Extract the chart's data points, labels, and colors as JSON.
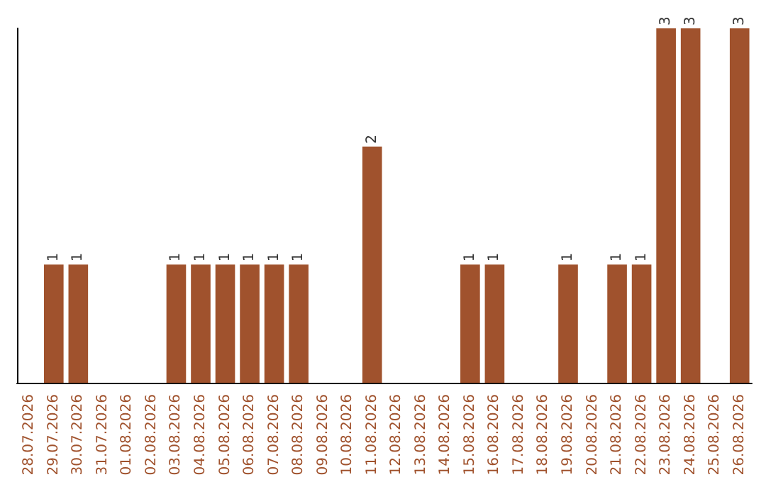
{
  "chart_data": {
    "type": "bar",
    "categories": [
      "28.07.2026",
      "29.07.2026",
      "30.07.2026",
      "31.07.2026",
      "01.08.2026",
      "02.08.2026",
      "03.08.2026",
      "04.08.2026",
      "05.08.2026",
      "06.08.2026",
      "07.08.2026",
      "08.08.2026",
      "09.08.2026",
      "10.08.2026",
      "11.08.2026",
      "12.08.2026",
      "13.08.2026",
      "14.08.2026",
      "15.08.2026",
      "16.08.2026",
      "17.08.2026",
      "18.08.2026",
      "19.08.2026",
      "20.08.2026",
      "21.08.2026",
      "22.08.2026",
      "23.08.2026",
      "24.08.2026",
      "25.08.2026",
      "26.08.2026"
    ],
    "values": [
      0,
      1,
      1,
      0,
      0,
      0,
      1,
      1,
      1,
      1,
      1,
      1,
      0,
      0,
      2,
      0,
      0,
      0,
      1,
      1,
      0,
      0,
      1,
      0,
      1,
      1,
      3,
      3,
      0,
      3
    ],
    "value_labels": [
      null,
      "1",
      "1",
      null,
      null,
      null,
      "1",
      "1",
      "1",
      "1",
      "1",
      "1",
      null,
      null,
      "2",
      null,
      null,
      null,
      "1",
      "1",
      null,
      null,
      "1",
      null,
      "1",
      "1",
      "3",
      "3",
      null,
      "3"
    ],
    "color": "#a0522d",
    "tick_labels": "x"
  }
}
